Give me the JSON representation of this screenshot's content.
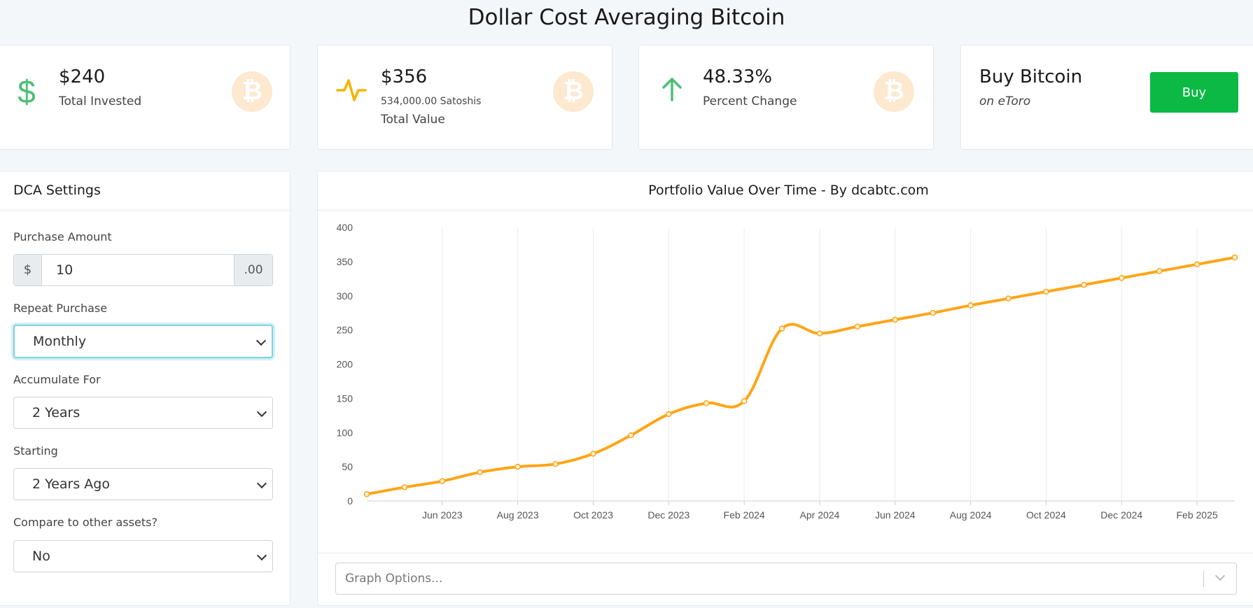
{
  "page": {
    "title": "Dollar Cost Averaging Bitcoin"
  },
  "stats": {
    "invested": {
      "value": "$240",
      "label": "Total Invested"
    },
    "value": {
      "value": "$356",
      "sub": "534,000.00 Satoshis",
      "label": "Total Value"
    },
    "change": {
      "value": "48.33%",
      "label": "Percent Change"
    },
    "buy": {
      "title": "Buy Bitcoin",
      "sub": "on eToro",
      "button": "Buy"
    },
    "bitcoin_glyph": "₿"
  },
  "settings": {
    "title": "DCA Settings",
    "purchase_amount": {
      "label": "Purchase Amount",
      "prefix": "$",
      "value": "10",
      "suffix": ".00"
    },
    "repeat_purchase": {
      "label": "Repeat Purchase",
      "value": "Monthly"
    },
    "accumulate_for": {
      "label": "Accumulate For",
      "value": "2 Years"
    },
    "starting": {
      "label": "Starting",
      "value": "2 Years Ago"
    },
    "compare": {
      "label": "Compare to other assets?",
      "value": "No"
    }
  },
  "graph_options": {
    "placeholder": "Graph Options..."
  },
  "colors": {
    "line": "#ffa516",
    "green": "#4bbf73",
    "yellow": "#f5b301",
    "buy": "#0bb944"
  },
  "icons": {
    "invested": "dollar-icon",
    "value": "pulse-icon",
    "change": "arrow-up-icon",
    "btc": "bitcoin-icon"
  },
  "chart_data": {
    "type": "line",
    "title": "Portfolio Value Over Time - By dcabtc.com",
    "x_ticks": [
      "Jun 2023",
      "Aug 2023",
      "Oct 2023",
      "Dec 2023",
      "Feb 2024",
      "Apr 2024",
      "Jun 2024",
      "Aug 2024",
      "Oct 2024",
      "Dec 2024",
      "Feb 2025"
    ],
    "y_ticks": [
      0,
      50,
      100,
      150,
      200,
      250,
      300,
      350,
      400
    ],
    "ylim": [
      0,
      400
    ],
    "x_dates": [
      "2023-04",
      "2023-05",
      "2023-06",
      "2023-07",
      "2023-08",
      "2023-09",
      "2023-10",
      "2023-11",
      "2023-12",
      "2024-01",
      "2024-02",
      "2024-03",
      "2024-04",
      "2024-05",
      "2024-06",
      "2024-07",
      "2024-08",
      "2024-09",
      "2024-10",
      "2024-11",
      "2024-12",
      "2025-01",
      "2025-02",
      "2025-03"
    ],
    "values": [
      10,
      20,
      29,
      42,
      50,
      54,
      69,
      96,
      127,
      143,
      146,
      252,
      245,
      255,
      265,
      275,
      286,
      296,
      306,
      316,
      326,
      336,
      346,
      356
    ],
    "grid": true,
    "legend": "none"
  }
}
